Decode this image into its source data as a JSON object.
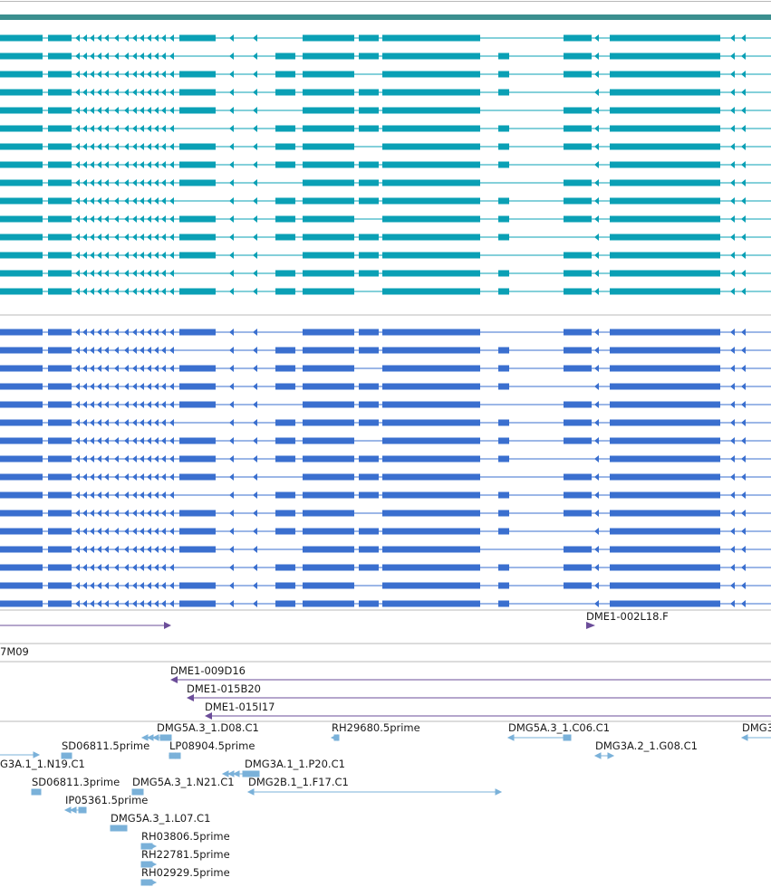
{
  "colors": {
    "top_band": "#3b8f8f",
    "tier_teal": "#0aa0b5",
    "tier_blue": "#3a6fcf",
    "clone": "#6b4d99",
    "est": "#7ab1d9",
    "divider": "#b8b8b8"
  },
  "tracks": {
    "teal_transcripts": 15,
    "blue_transcripts": 16
  },
  "clone_labels": [
    {
      "id": "c1",
      "label": "DME1-002L18.F"
    },
    {
      "id": "c2",
      "label": "7M09"
    },
    {
      "id": "c3",
      "label": "DME1-009D16"
    },
    {
      "id": "c4",
      "label": "DME1-015B20"
    },
    {
      "id": "c5",
      "label": "DME1-015I17"
    }
  ],
  "est_labels": [
    {
      "id": "e1",
      "label": "DMG5A.3_1.D08.C1"
    },
    {
      "id": "e2",
      "label": "RH29680.5prime"
    },
    {
      "id": "e3",
      "label": "DMG5A.3_1.C06.C1"
    },
    {
      "id": "e4",
      "label": "DMG3"
    },
    {
      "id": "e5",
      "label": "SD06811.5prime"
    },
    {
      "id": "e6",
      "label": "LP08904.5prime"
    },
    {
      "id": "e7",
      "label": "DMG3A.2_1.G08.C1"
    },
    {
      "id": "e8",
      "label": "G3A.1_1.N19.C1"
    },
    {
      "id": "e9",
      "label": "DMG3A.1_1.P20.C1"
    },
    {
      "id": "e10",
      "label": "SD06811.3prime"
    },
    {
      "id": "e11",
      "label": "DMG5A.3_1.N21.C1"
    },
    {
      "id": "e12",
      "label": "DMG2B.1_1.F17.C1"
    },
    {
      "id": "e13",
      "label": "IP05361.5prime"
    },
    {
      "id": "e14",
      "label": "DMG5A.3_1.L07.C1"
    },
    {
      "id": "e15",
      "label": "RH03806.5prime"
    },
    {
      "id": "e16",
      "label": "RH22781.5prime"
    },
    {
      "id": "e17",
      "label": "RH02929.5prime"
    }
  ]
}
